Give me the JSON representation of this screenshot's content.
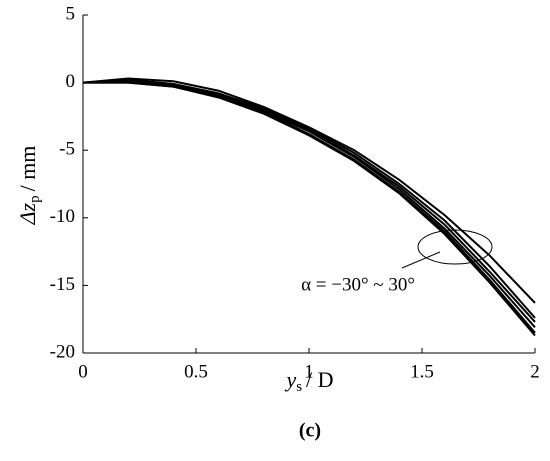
{
  "chart_data": {
    "type": "line",
    "color": "#000000",
    "x": [
      0,
      0.2,
      0.4,
      0.6,
      0.8,
      1.0,
      1.2,
      1.4,
      1.6,
      1.8,
      2.0
    ],
    "series": [
      {
        "values": [
          0,
          0.3,
          0.1,
          -0.6,
          -1.8,
          -3.3,
          -5.0,
          -7.2,
          -9.8,
          -12.8,
          -16.3
        ]
      },
      {
        "values": [
          0,
          0.2,
          -0.1,
          -0.8,
          -1.9,
          -3.4,
          -5.2,
          -7.5,
          -10.2,
          -13.6,
          -17.4
        ]
      },
      {
        "values": [
          0,
          0.2,
          -0.1,
          -0.8,
          -2.0,
          -3.5,
          -5.4,
          -7.7,
          -10.5,
          -14.0,
          -17.7
        ]
      },
      {
        "values": [
          0,
          0.1,
          -0.2,
          -0.9,
          -2.1,
          -3.6,
          -5.5,
          -7.9,
          -10.8,
          -14.3,
          -18.1
        ]
      },
      {
        "values": [
          0,
          0.0,
          -0.3,
          -1.0,
          -2.2,
          -3.8,
          -5.7,
          -8.1,
          -11.0,
          -14.6,
          -18.5
        ]
      },
      {
        "values": [
          0,
          0.0,
          -0.3,
          -1.1,
          -2.3,
          -3.9,
          -5.8,
          -8.2,
          -11.2,
          -14.8,
          -18.7
        ]
      }
    ],
    "xlim": [
      0,
      2
    ],
    "xticks": [
      0,
      0.5,
      1,
      1.5,
      2
    ],
    "ylim": [
      -20,
      5
    ],
    "yticks": [
      -20,
      -15,
      -10,
      -5,
      0,
      5
    ],
    "xlabel": {
      "main": "y",
      "sub": "s",
      "unit": "/ D"
    },
    "ylabel": {
      "main": "Δz",
      "sub": "p",
      "unit": "/ mm"
    },
    "annotation": "α = −30° ~ 30°",
    "caption": "(c)"
  }
}
